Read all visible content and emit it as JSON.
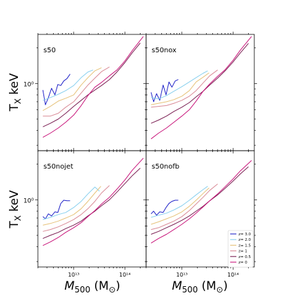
{
  "chart_data": {
    "type": "line",
    "layout": "2x2 grid, shared axes",
    "x_scale": "log",
    "y_scale": "log",
    "xlim": [
      2000000000000.0,
      260000000000000.0
    ],
    "ylim": [
      0.27,
      2.6
    ],
    "xlabel": "M$_{500}$ (M$_\\odot$)",
    "xlabel_main": "M",
    "xlabel_sub": "500",
    "xlabel_units": " (M",
    "xlabel_units_sub": "⊙",
    "xlabel_units_close": ")",
    "ylabel": "T$_X$ keV",
    "ylabel_main": "T",
    "ylabel_sub": "X",
    "ylabel_units": " keV",
    "y_tick_label": "10⁰",
    "x_tick_labels": [
      "10¹³",
      "10¹⁴"
    ],
    "legend": {
      "placement": "lower right of bottom-right panel"
    },
    "colors": {
      "z= 3.0": "#1f22c8",
      "z= 2.0": "#87cfee",
      "z= 1.5": "#e6c27a",
      "z= 1": "#d98a96",
      "z= 0.5": "#7a1e52",
      "z= 0": "#c8147a"
    },
    "panels": [
      {
        "title": "s50",
        "series": [
          {
            "name": "z= 3.0",
            "x": [
              2500000000000.0,
              2800000000000.0,
              3200000000000.0,
              3700000000000.0,
              4300000000000.0,
              4900000000000.0,
              5600000000000.0,
              6400000000000.0,
              7400000000000.0,
              8500000000000.0
            ],
            "y": [
              0.88,
              0.66,
              0.76,
              0.91,
              0.8,
              0.98,
              0.96,
              1.05,
              1.1,
              1.2
            ]
          },
          {
            "name": "z= 2.0",
            "x": [
              2500000000000.0,
              3500000000000.0,
              5000000000000.0,
              7000000000000.0,
              10000000000000.0,
              14000000000000.0,
              19000000000000.0,
              24000000000000.0
            ],
            "y": [
              0.72,
              0.76,
              0.81,
              0.87,
              0.96,
              1.12,
              1.25,
              1.3
            ]
          },
          {
            "name": "z= 1.5",
            "x": [
              2500000000000.0,
              3500000000000.0,
              5000000000000.0,
              7000000000000.0,
              10000000000000.0,
              14000000000000.0,
              19000000000000.0,
              26000000000000.0,
              35000000000000.0
            ],
            "y": [
              0.59,
              0.64,
              0.71,
              0.75,
              0.8,
              0.97,
              1.12,
              1.28,
              1.36
            ]
          },
          {
            "name": "z= 1",
            "x": [
              2500000000000.0,
              3500000000000.0,
              5000000000000.0,
              7000000000000.0,
              10000000000000.0,
              14000000000000.0,
              19000000000000.0,
              26000000000000.0,
              35000000000000.0,
              50000000000000.0
            ],
            "y": [
              0.53,
              0.53,
              0.56,
              0.63,
              0.7,
              0.83,
              0.97,
              1.11,
              1.26,
              1.38
            ]
          },
          {
            "name": "z= 0.5",
            "x": [
              2500000000000.0,
              3500000000000.0,
              5000000000000.0,
              7000000000000.0,
              10000000000000.0,
              14000000000000.0,
              19000000000000.0,
              26000000000000.0,
              35000000000000.0,
              50000000000000.0,
              70000000000000.0,
              100000000000000.0,
              140000000000000.0,
              200000000000000.0
            ],
            "y": [
              0.43,
              0.46,
              0.5,
              0.56,
              0.64,
              0.72,
              0.8,
              0.88,
              0.96,
              1.08,
              1.25,
              1.5,
              1.82,
              2.2
            ]
          },
          {
            "name": "z= 0",
            "x": [
              2500000000000.0,
              3500000000000.0,
              5000000000000.0,
              7000000000000.0,
              10000000000000.0,
              14000000000000.0,
              19000000000000.0,
              26000000000000.0,
              35000000000000.0,
              50000000000000.0,
              70000000000000.0,
              100000000000000.0,
              140000000000000.0,
              230000000000000.0
            ],
            "y": [
              0.35,
              0.38,
              0.42,
              0.47,
              0.54,
              0.65,
              0.79,
              0.93,
              1.02,
              1.16,
              1.3,
              1.55,
              1.9,
              2.5
            ]
          }
        ]
      },
      {
        "title": "s50nox",
        "series": [
          {
            "name": "z= 3.0",
            "x": [
              2500000000000.0,
              2800000000000.0,
              3200000000000.0,
              3700000000000.0,
              4300000000000.0,
              4900000000000.0,
              5600000000000.0,
              6400000000000.0,
              7400000000000.0,
              8500000000000.0
            ],
            "y": [
              0.84,
              0.7,
              0.82,
              0.72,
              0.97,
              0.8,
              1.03,
              0.93,
              1.05,
              1.08
            ]
          },
          {
            "name": "z= 2.0",
            "x": [
              2500000000000.0,
              3500000000000.0,
              5000000000000.0,
              7000000000000.0,
              10000000000000.0,
              14000000000000.0,
              19000000000000.0,
              26000000000000.0,
              32000000000000.0
            ],
            "y": [
              0.76,
              0.74,
              0.79,
              0.86,
              0.94,
              1.03,
              1.12,
              1.22,
              1.28
            ]
          },
          {
            "name": "z= 1.5",
            "x": [
              2500000000000.0,
              3500000000000.0,
              5000000000000.0,
              7000000000000.0,
              10000000000000.0,
              14000000000000.0,
              19000000000000.0,
              26000000000000.0,
              34000000000000.0
            ],
            "y": [
              0.66,
              0.68,
              0.7,
              0.73,
              0.78,
              0.87,
              1.03,
              1.13,
              1.23
            ]
          },
          {
            "name": "z= 1",
            "x": [
              2500000000000.0,
              3500000000000.0,
              5000000000000.0,
              7000000000000.0,
              10000000000000.0,
              14000000000000.0,
              19000000000000.0,
              26000000000000.0,
              35000000000000.0,
              50000000000000.0
            ],
            "y": [
              0.63,
              0.64,
              0.65,
              0.68,
              0.72,
              0.78,
              0.87,
              1.01,
              1.16,
              1.3
            ]
          },
          {
            "name": "z= 0.5",
            "x": [
              2500000000000.0,
              3500000000000.0,
              5000000000000.0,
              7000000000000.0,
              10000000000000.0,
              14000000000000.0,
              19000000000000.0,
              26000000000000.0,
              35000000000000.0,
              50000000000000.0,
              70000000000000.0,
              100000000000000.0,
              140000000000000.0,
              200000000000000.0
            ],
            "y": [
              0.46,
              0.49,
              0.53,
              0.58,
              0.63,
              0.69,
              0.77,
              0.86,
              0.97,
              1.11,
              1.28,
              1.52,
              1.82,
              2.18
            ]
          },
          {
            "name": "z= 0",
            "x": [
              2500000000000.0,
              3500000000000.0,
              5000000000000.0,
              7000000000000.0,
              10000000000000.0,
              14000000000000.0,
              19000000000000.0,
              26000000000000.0,
              35000000000000.0,
              50000000000000.0,
              70000000000000.0,
              100000000000000.0,
              140000000000000.0,
              230000000000000.0
            ],
            "y": [
              0.34,
              0.38,
              0.42,
              0.47,
              0.53,
              0.6,
              0.71,
              0.86,
              0.99,
              1.15,
              1.31,
              1.57,
              1.92,
              2.5
            ]
          }
        ]
      },
      {
        "title": "s50nojet",
        "series": [
          {
            "name": "z= 3.0",
            "x": [
              2500000000000.0,
              2800000000000.0,
              3200000000000.0,
              3700000000000.0,
              4300000000000.0,
              4900000000000.0,
              5600000000000.0,
              6400000000000.0,
              7400000000000.0,
              8500000000000.0
            ],
            "y": [
              0.72,
              0.69,
              0.76,
              0.73,
              0.79,
              0.78,
              0.93,
              0.99,
              0.98,
              0.98
            ]
          },
          {
            "name": "z= 2.0",
            "x": [
              2500000000000.0,
              3500000000000.0,
              5000000000000.0,
              7000000000000.0,
              10000000000000.0,
              14000000000000.0,
              19000000000000.0,
              26000000000000.0,
              32000000000000.0
            ],
            "y": [
              0.68,
              0.71,
              0.75,
              0.78,
              0.86,
              0.97,
              1.12,
              1.28,
              1.18
            ]
          },
          {
            "name": "z= 1.5",
            "x": [
              2500000000000.0,
              3500000000000.0,
              5000000000000.0,
              7000000000000.0,
              10000000000000.0,
              14000000000000.0,
              19000000000000.0,
              26000000000000.0,
              34000000000000.0
            ],
            "y": [
              0.61,
              0.63,
              0.66,
              0.7,
              0.75,
              0.84,
              0.97,
              1.14,
              1.3
            ]
          },
          {
            "name": "z= 1",
            "x": [
              2500000000000.0,
              3500000000000.0,
              5000000000000.0,
              7000000000000.0,
              10000000000000.0,
              14000000000000.0,
              19000000000000.0,
              26000000000000.0,
              35000000000000.0,
              50000000000000.0
            ],
            "y": [
              0.54,
              0.56,
              0.59,
              0.63,
              0.68,
              0.75,
              0.84,
              0.97,
              1.14,
              1.32
            ]
          },
          {
            "name": "z= 0.5",
            "x": [
              2500000000000.0,
              3500000000000.0,
              5000000000000.0,
              7000000000000.0,
              10000000000000.0,
              14000000000000.0,
              19000000000000.0,
              26000000000000.0,
              35000000000000.0,
              50000000000000.0,
              70000000000000.0,
              100000000000000.0,
              140000000000000.0,
              200000000000000.0
            ],
            "y": [
              0.47,
              0.5,
              0.53,
              0.57,
              0.61,
              0.66,
              0.73,
              0.8,
              0.89,
              1.0,
              1.16,
              1.37,
              1.6,
              1.85
            ]
          },
          {
            "name": "z= 0",
            "x": [
              2500000000000.0,
              3500000000000.0,
              5000000000000.0,
              7000000000000.0,
              10000000000000.0,
              14000000000000.0,
              19000000000000.0,
              26000000000000.0,
              35000000000000.0,
              50000000000000.0,
              70000000000000.0,
              100000000000000.0,
              140000000000000.0,
              230000000000000.0
            ],
            "y": [
              0.41,
              0.44,
              0.48,
              0.53,
              0.58,
              0.64,
              0.72,
              0.81,
              0.92,
              1.05,
              1.23,
              1.47,
              1.78,
              2.25
            ]
          }
        ]
      },
      {
        "title": "s50nofb",
        "series": [
          {
            "name": "z= 3.0",
            "x": [
              2500000000000.0,
              2800000000000.0,
              3200000000000.0,
              3700000000000.0,
              4300000000000.0,
              4900000000000.0,
              5600000000000.0,
              6400000000000.0,
              7400000000000.0,
              8500000000000.0
            ],
            "y": [
              0.76,
              0.8,
              0.74,
              0.79,
              0.78,
              0.86,
              0.93,
              0.97,
              0.99,
              0.99
            ]
          },
          {
            "name": "z= 2.0",
            "x": [
              2500000000000.0,
              3500000000000.0,
              5000000000000.0,
              7000000000000.0,
              10000000000000.0,
              14000000000000.0,
              19000000000000.0,
              26000000000000.0,
              32000000000000.0
            ],
            "y": [
              0.71,
              0.74,
              0.77,
              0.82,
              0.89,
              0.99,
              1.1,
              1.22,
              1.3
            ]
          },
          {
            "name": "z= 1.5",
            "x": [
              2500000000000.0,
              3500000000000.0,
              5000000000000.0,
              7000000000000.0,
              10000000000000.0,
              14000000000000.0,
              19000000000000.0,
              26000000000000.0,
              34000000000000.0
            ],
            "y": [
              0.62,
              0.65,
              0.69,
              0.73,
              0.79,
              0.88,
              0.99,
              1.13,
              1.26
            ]
          },
          {
            "name": "z= 1",
            "x": [
              2500000000000.0,
              3500000000000.0,
              5000000000000.0,
              7000000000000.0,
              10000000000000.0,
              14000000000000.0,
              19000000000000.0,
              26000000000000.0,
              35000000000000.0,
              50000000000000.0
            ],
            "y": [
              0.56,
              0.58,
              0.62,
              0.66,
              0.72,
              0.81,
              0.92,
              1.05,
              1.2,
              1.36
            ]
          },
          {
            "name": "z= 0.5",
            "x": [
              2500000000000.0,
              3500000000000.0,
              5000000000000.0,
              7000000000000.0,
              10000000000000.0,
              14000000000000.0,
              19000000000000.0,
              26000000000000.0,
              35000000000000.0,
              50000000000000.0,
              70000000000000.0,
              100000000000000.0,
              140000000000000.0,
              200000000000000.0
            ],
            "y": [
              0.51,
              0.54,
              0.58,
              0.62,
              0.67,
              0.73,
              0.8,
              0.88,
              0.98,
              1.1,
              1.25,
              1.44,
              1.66,
              1.9
            ]
          },
          {
            "name": "z= 0",
            "x": [
              2500000000000.0,
              3500000000000.0,
              5000000000000.0,
              7000000000000.0,
              10000000000000.0,
              14000000000000.0,
              19000000000000.0,
              26000000000000.0,
              35000000000000.0,
              50000000000000.0,
              70000000000000.0,
              100000000000000.0,
              140000000000000.0,
              230000000000000.0
            ],
            "y": [
              0.43,
              0.47,
              0.51,
              0.56,
              0.62,
              0.69,
              0.77,
              0.87,
              0.98,
              1.12,
              1.29,
              1.5,
              1.76,
              2.15
            ]
          }
        ]
      }
    ]
  }
}
